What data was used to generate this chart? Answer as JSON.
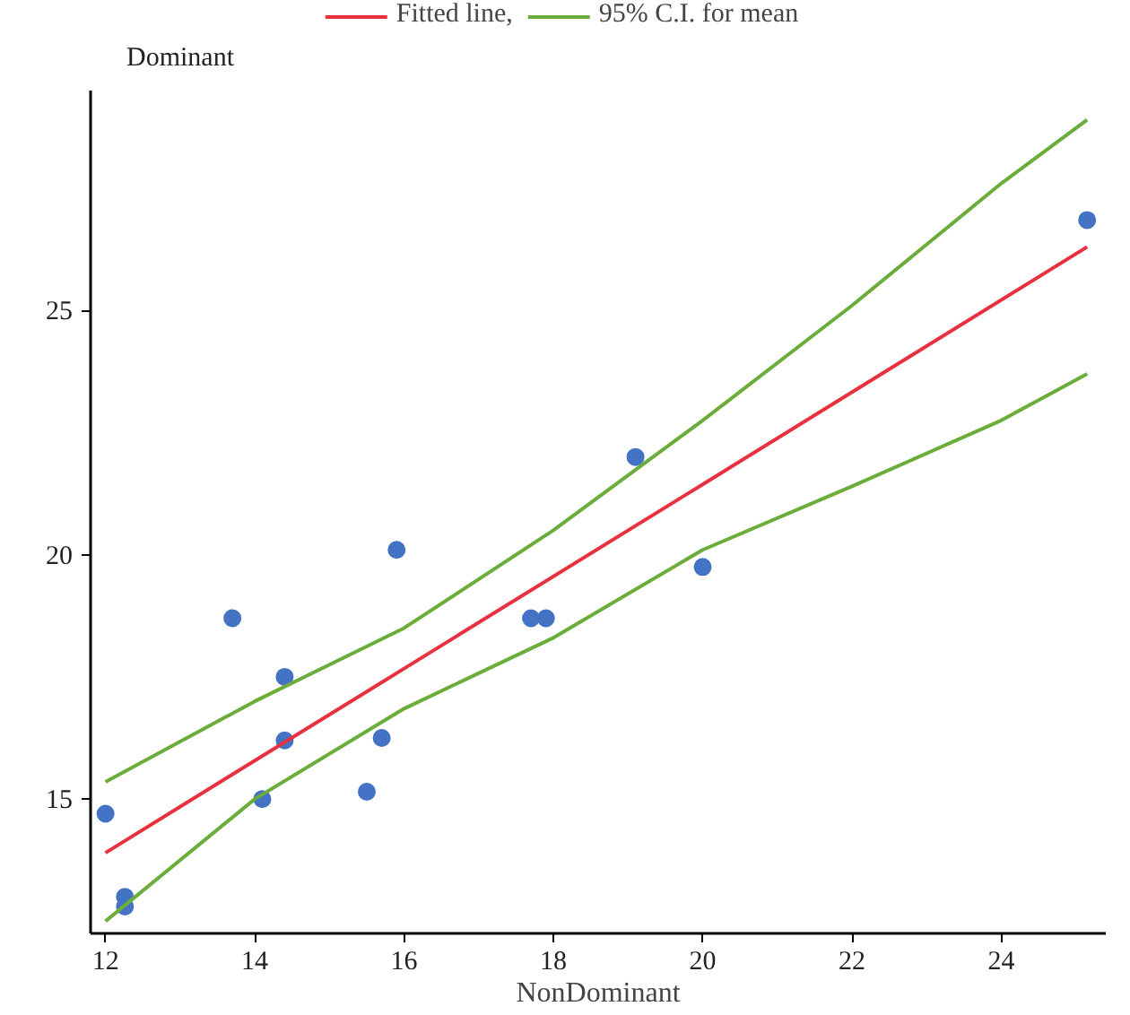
{
  "chart_data": {
    "type": "scatter",
    "xlabel": "NonDominant",
    "ylabel": "Dominant",
    "xlim": [
      11.8,
      25.4
    ],
    "ylim": [
      12.25,
      29.5
    ],
    "xticks": [
      12,
      14,
      16,
      18,
      20,
      22,
      24
    ],
    "yticks": [
      15,
      20,
      25
    ],
    "grid": false,
    "legend": "top",
    "marker": "circle",
    "series": [
      {
        "color": "#4472c4",
        "x": [
          12.0,
          12.26,
          12.26,
          13.7,
          14.1,
          14.4,
          14.4,
          15.5,
          15.7,
          15.9,
          17.7,
          17.9,
          19.1,
          20.0,
          25.15
        ],
        "values": [
          14.7,
          13.0,
          12.8,
          18.7,
          15.0,
          17.5,
          16.2,
          15.15,
          16.25,
          20.1,
          18.7,
          18.7,
          22.0,
          19.75,
          26.85
        ]
      },
      {
        "type": "line",
        "name": "Fitted line,",
        "color": "#e8303f",
        "marker": "none",
        "x": [
          12,
          16,
          20,
          25.15
        ],
        "values": [
          13.9,
          17.67,
          21.44,
          26.3
        ]
      },
      {
        "type": "line",
        "name": "95% C.I. for mean",
        "color": "#6aad3a",
        "marker": "none",
        "x": [
          12,
          14,
          16,
          18,
          20,
          22,
          24,
          25.15
        ],
        "values": [
          15.35,
          17.0,
          18.5,
          20.5,
          22.75,
          25.1,
          27.6,
          28.9
        ]
      },
      {
        "type": "line",
        "color": "#6aad3a",
        "marker": "none",
        "x": [
          12,
          14,
          16,
          18,
          20,
          22,
          24,
          25.15
        ],
        "values": [
          12.5,
          15.0,
          16.85,
          18.3,
          20.1,
          21.4,
          22.75,
          23.7
        ]
      }
    ]
  }
}
